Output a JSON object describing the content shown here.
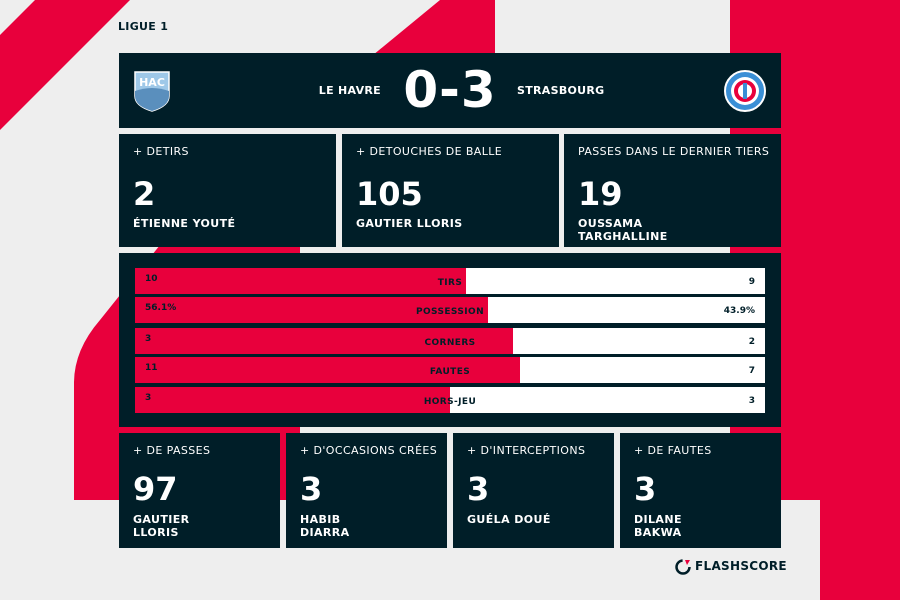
{
  "league": "LIGUE 1",
  "match": {
    "home_team": "LE HAVRE",
    "away_team": "STRASBOURG",
    "score": "0-3",
    "home_crest_text": "HAC"
  },
  "top_stats": [
    {
      "label": "+ DETIRS",
      "value": "2",
      "player": [
        "ÉTIENNE YOUTÉ"
      ]
    },
    {
      "label": "+ DETOUCHES DE BALLE",
      "value": "105",
      "player": [
        "GAUTIER LLORIS"
      ]
    },
    {
      "label": "PASSES DANS LE DERNIER TIERS",
      "value": "19",
      "player": [
        "OUSSAMA",
        "TARGHALLINE"
      ]
    }
  ],
  "comparison": [
    {
      "label": "TIRS",
      "home": "10",
      "away": "9",
      "home_share": 0.526
    },
    {
      "label": "POSSESSION",
      "home": "56.1%",
      "away": "43.9%",
      "home_share": 0.561
    },
    {
      "label": "CORNERS",
      "home": "3",
      "away": "2",
      "home_share": 0.6
    },
    {
      "label": "FAUTES",
      "home": "11",
      "away": "7",
      "home_share": 0.611
    },
    {
      "label": "HORS-JEU",
      "home": "3",
      "away": "3",
      "home_share": 0.5
    }
  ],
  "bottom_stats": [
    {
      "label": "+ DE PASSES",
      "value": "97",
      "player": [
        "GAUTIER",
        "LLORIS"
      ]
    },
    {
      "label": "+ D'OCCASIONS CRÉES",
      "value": "3",
      "player": [
        "HABIB",
        "DIARRA"
      ]
    },
    {
      "label": "+ D'INTERCEPTIONS",
      "value": "3",
      "player": [
        "GUÉLA DOUÉ"
      ]
    },
    {
      "label": "+ DE FAUTES",
      "value": "3",
      "player": [
        "DILANE",
        "BAKWA"
      ]
    }
  ],
  "branding": {
    "name": "FLASHSCORE"
  },
  "colors": {
    "navy": "#001e28",
    "red": "#e8003c",
    "white": "#ffffff",
    "background": "#eeeeee"
  },
  "icons": {
    "home_crest": "le-havre-crest-icon",
    "away_crest": "strasbourg-crest-icon",
    "brand_logo": "flashscore-logo-icon"
  }
}
